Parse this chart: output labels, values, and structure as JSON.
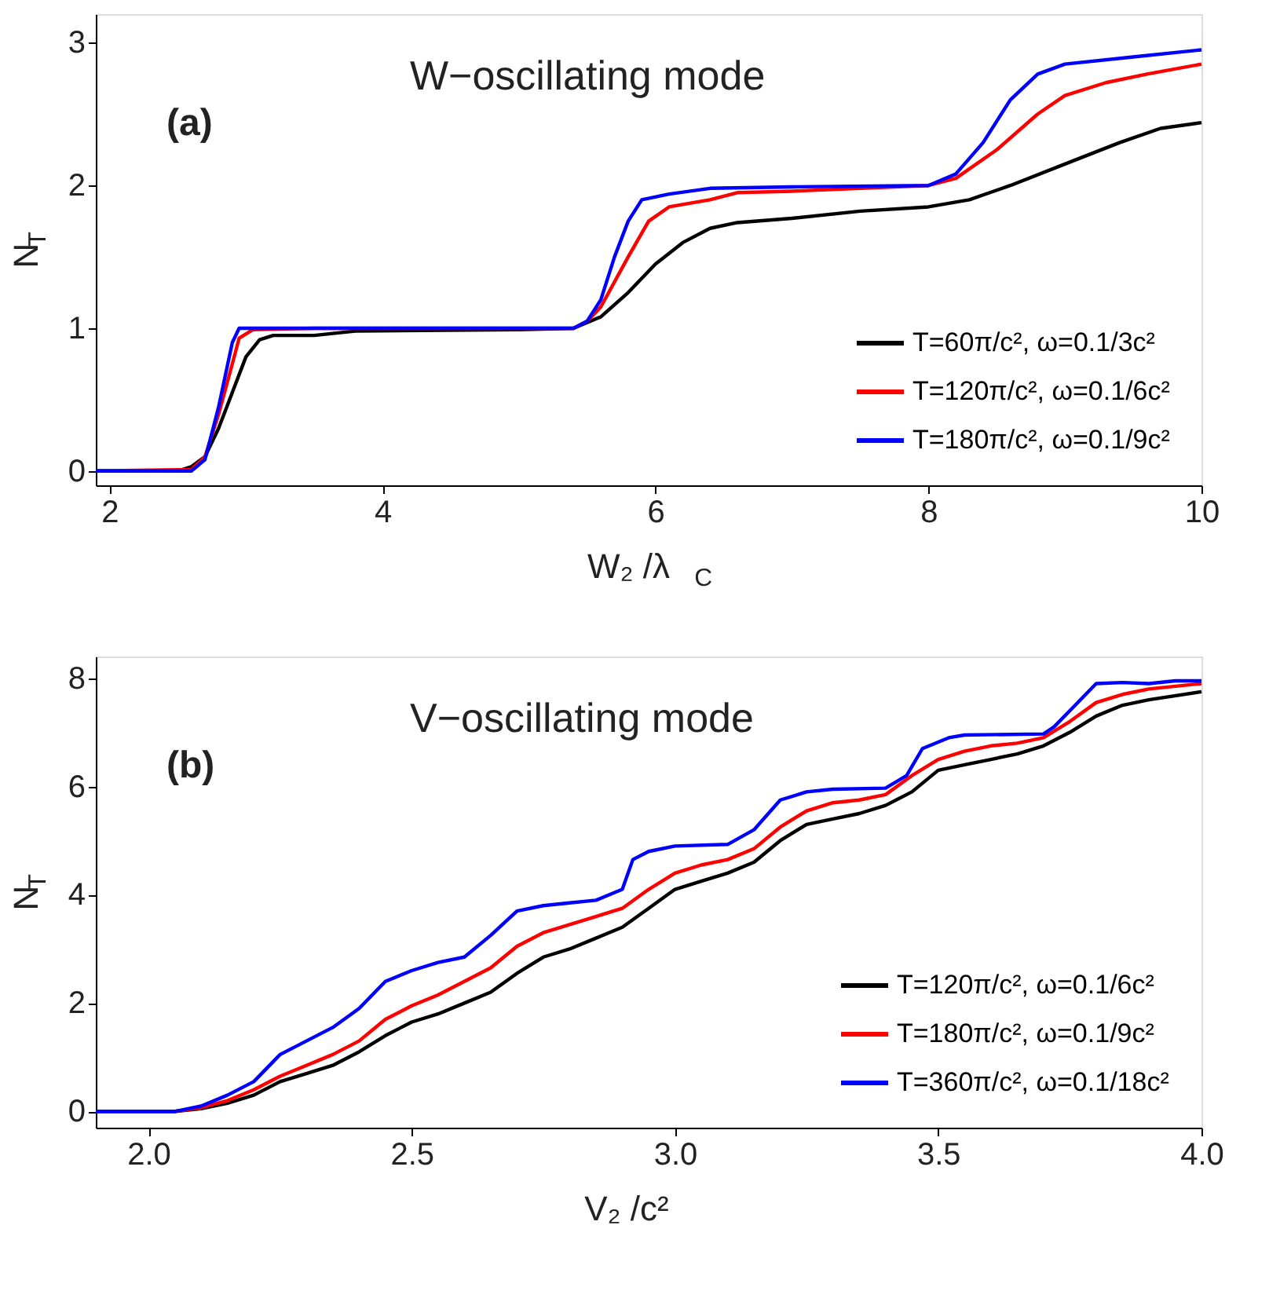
{
  "chart_data": [
    {
      "type": "line",
      "xlabel": "W₂ /λ$_{C}$",
      "ylabel": "N$_{T}$",
      "annotations": [
        "(a)",
        "W−oscillating mode"
      ],
      "xlim": [
        1.9,
        10
      ],
      "ylim": [
        -0.1,
        3.2
      ],
      "xticks": [
        2,
        4,
        6,
        8,
        10
      ],
      "yticks": [
        0,
        1,
        2,
        3
      ],
      "grid": false,
      "legend": "bottom right",
      "line_style": "solid",
      "marker": "none",
      "series": [
        {
          "name": "T=60π/c², ω=0.1/3c²",
          "color": "#000000",
          "x": [
            1.9,
            2.5,
            2.6,
            2.7,
            2.8,
            2.9,
            3.0,
            3.1,
            3.2,
            3.5,
            3.8,
            5.0,
            5.4,
            5.6,
            5.8,
            6.0,
            6.2,
            6.4,
            6.6,
            7.0,
            7.5,
            8.0,
            8.3,
            8.6,
            9.0,
            9.4,
            9.7,
            10
          ],
          "values": [
            0,
            0,
            0.03,
            0.1,
            0.3,
            0.55,
            0.8,
            0.92,
            0.95,
            0.95,
            0.98,
            0.99,
            1.0,
            1.08,
            1.25,
            1.45,
            1.6,
            1.7,
            1.74,
            1.77,
            1.82,
            1.85,
            1.9,
            2.0,
            2.15,
            2.3,
            2.4,
            2.44
          ]
        },
        {
          "name": "T=120π/c², ω=0.1/6c²",
          "color": "#ff0000",
          "x": [
            1.9,
            2.6,
            2.7,
            2.8,
            2.9,
            2.95,
            3.05,
            3.5,
            5.4,
            5.5,
            5.6,
            5.8,
            5.95,
            6.1,
            6.4,
            6.6,
            7.0,
            8.0,
            8.2,
            8.5,
            8.8,
            9.0,
            9.3,
            9.6,
            10
          ],
          "values": [
            0,
            0.01,
            0.1,
            0.4,
            0.75,
            0.93,
            0.99,
            1.0,
            1.0,
            1.05,
            1.15,
            1.5,
            1.75,
            1.85,
            1.9,
            1.95,
            1.96,
            2.0,
            2.05,
            2.25,
            2.5,
            2.63,
            2.72,
            2.78,
            2.85
          ]
        },
        {
          "name": "T=180π/c², ω=0.1/9c²",
          "color": "#0000ff",
          "x": [
            1.9,
            2.6,
            2.7,
            2.8,
            2.9,
            2.95,
            3.5,
            5.4,
            5.5,
            5.6,
            5.7,
            5.8,
            5.9,
            6.1,
            6.4,
            7.0,
            8.0,
            8.2,
            8.4,
            8.6,
            8.8,
            9.0,
            9.5,
            10
          ],
          "values": [
            0,
            0,
            0.08,
            0.45,
            0.9,
            1.0,
            1.0,
            1.0,
            1.05,
            1.2,
            1.5,
            1.75,
            1.9,
            1.94,
            1.98,
            1.99,
            2.0,
            2.08,
            2.3,
            2.6,
            2.78,
            2.85,
            2.9,
            2.95
          ]
        }
      ]
    },
    {
      "type": "line",
      "xlabel": "V₂ /c²",
      "ylabel": "N$_{T}$",
      "annotations": [
        "(b)",
        "V−oscillating mode"
      ],
      "xlim": [
        1.9,
        4.0
      ],
      "ylim": [
        -0.3,
        8.4
      ],
      "xticks": [
        {
          "value": 2,
          "label": "2.0"
        },
        2.5,
        {
          "value": 3,
          "label": "3.0"
        },
        3.5,
        {
          "value": 4,
          "label": "4.0"
        }
      ],
      "yticks": [
        0,
        2,
        4,
        6,
        8
      ],
      "grid": false,
      "legend": "bottom right",
      "line_style": "solid",
      "marker": "none",
      "series": [
        {
          "name": "T=120π/c², ω=0.1/6c²",
          "color": "#000000",
          "x": [
            1.9,
            2.05,
            2.1,
            2.15,
            2.2,
            2.25,
            2.3,
            2.35,
            2.4,
            2.45,
            2.5,
            2.55,
            2.6,
            2.65,
            2.7,
            2.75,
            2.8,
            2.85,
            2.9,
            2.95,
            3.0,
            3.05,
            3.1,
            3.15,
            3.2,
            3.25,
            3.3,
            3.35,
            3.4,
            3.45,
            3.5,
            3.55,
            3.6,
            3.65,
            3.7,
            3.75,
            3.8,
            3.85,
            3.9,
            4.0
          ],
          "values": [
            0,
            0,
            0.05,
            0.15,
            0.3,
            0.55,
            0.7,
            0.85,
            1.1,
            1.4,
            1.65,
            1.8,
            2.0,
            2.2,
            2.55,
            2.85,
            3.0,
            3.2,
            3.4,
            3.75,
            4.1,
            4.25,
            4.4,
            4.6,
            5.0,
            5.3,
            5.4,
            5.5,
            5.65,
            5.9,
            6.3,
            6.4,
            6.5,
            6.6,
            6.75,
            7.0,
            7.3,
            7.5,
            7.6,
            7.75
          ]
        },
        {
          "name": "T=180π/c², ω=0.1/9c²",
          "color": "#ff0000",
          "x": [
            1.9,
            2.05,
            2.1,
            2.15,
            2.2,
            2.25,
            2.3,
            2.35,
            2.4,
            2.45,
            2.5,
            2.55,
            2.6,
            2.65,
            2.7,
            2.75,
            2.8,
            2.85,
            2.9,
            2.95,
            3.0,
            3.05,
            3.1,
            3.15,
            3.2,
            3.25,
            3.3,
            3.35,
            3.4,
            3.45,
            3.5,
            3.55,
            3.6,
            3.65,
            3.7,
            3.75,
            3.8,
            3.85,
            3.9,
            4.0
          ],
          "values": [
            0,
            0,
            0.07,
            0.2,
            0.4,
            0.65,
            0.85,
            1.05,
            1.3,
            1.7,
            1.95,
            2.15,
            2.4,
            2.65,
            3.05,
            3.3,
            3.45,
            3.6,
            3.75,
            4.1,
            4.4,
            4.55,
            4.65,
            4.85,
            5.25,
            5.55,
            5.7,
            5.75,
            5.85,
            6.2,
            6.5,
            6.65,
            6.75,
            6.8,
            6.9,
            7.2,
            7.55,
            7.7,
            7.8,
            7.9
          ]
        },
        {
          "name": "T=360π/c², ω=0.1/18c²",
          "color": "#0000ff",
          "x": [
            1.9,
            2.05,
            2.1,
            2.15,
            2.2,
            2.25,
            2.3,
            2.35,
            2.4,
            2.45,
            2.5,
            2.55,
            2.6,
            2.65,
            2.7,
            2.75,
            2.8,
            2.85,
            2.9,
            2.92,
            2.95,
            3.0,
            3.1,
            3.15,
            3.2,
            3.25,
            3.3,
            3.4,
            3.44,
            3.47,
            3.52,
            3.55,
            3.7,
            3.72,
            3.77,
            3.8,
            3.85,
            3.9,
            3.95,
            4.0
          ],
          "values": [
            0,
            0,
            0.1,
            0.3,
            0.55,
            1.05,
            1.3,
            1.55,
            1.9,
            2.4,
            2.6,
            2.75,
            2.85,
            3.25,
            3.7,
            3.8,
            3.85,
            3.9,
            4.1,
            4.65,
            4.8,
            4.9,
            4.93,
            5.2,
            5.75,
            5.9,
            5.95,
            5.97,
            6.2,
            6.7,
            6.9,
            6.95,
            6.97,
            7.1,
            7.6,
            7.9,
            7.92,
            7.9,
            7.95,
            7.95
          ]
        }
      ]
    }
  ]
}
